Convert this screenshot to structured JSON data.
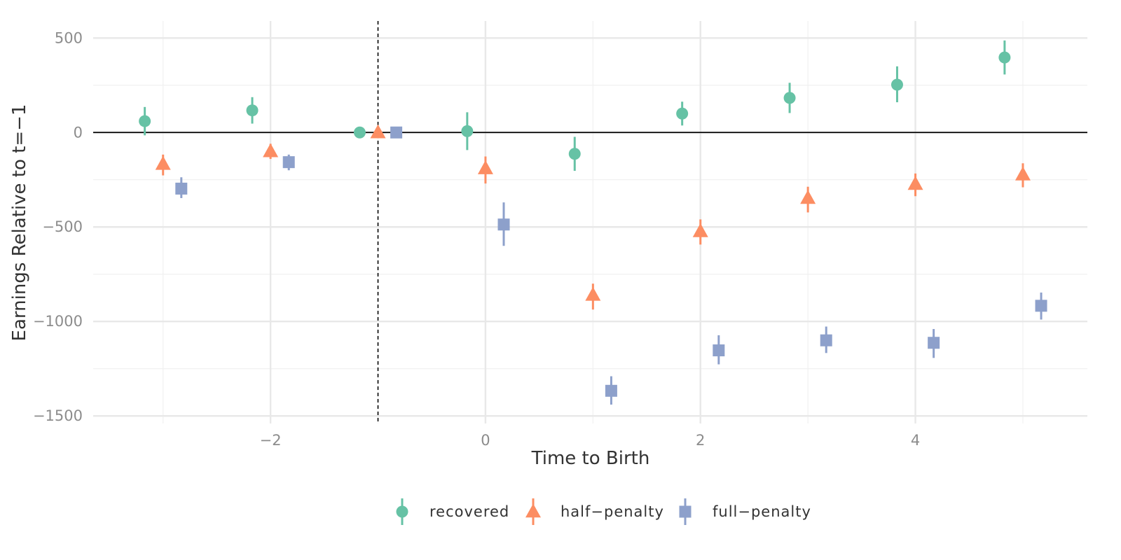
{
  "chart_data": {
    "type": "scatter",
    "xlabel": "Time to Birth",
    "ylabel": "Earnings Relative to t=−1",
    "x_ticks": [
      -2,
      0,
      2,
      4
    ],
    "x_tick_labels": [
      "−2",
      "0",
      "2",
      "4"
    ],
    "y_ticks": [
      500,
      0,
      -500,
      -1000,
      -1500
    ],
    "y_tick_labels": [
      "500",
      "0",
      "−500",
      "−1000",
      "−1500"
    ],
    "xlim": [
      -3.65,
      5.6
    ],
    "ylim": [
      -1540,
      590
    ],
    "grid": true,
    "reference_hline_y": 0,
    "reference_vline_x": -1,
    "dodge": 0.17,
    "legend_position": "bottom",
    "series": [
      {
        "name": "recovered",
        "color": "#66c2a5",
        "shape": "circle",
        "points": [
          {
            "x": -3,
            "y": 60,
            "lo": -15,
            "hi": 135
          },
          {
            "x": -2,
            "y": 117,
            "lo": 47,
            "hi": 187
          },
          {
            "x": -1,
            "y": 0,
            "lo": 0,
            "hi": 0
          },
          {
            "x": 0,
            "y": 7,
            "lo": -93,
            "hi": 107
          },
          {
            "x": 1,
            "y": -113,
            "lo": -203,
            "hi": -23
          },
          {
            "x": 2,
            "y": 100,
            "lo": 37,
            "hi": 163
          },
          {
            "x": 3,
            "y": 183,
            "lo": 103,
            "hi": 263
          },
          {
            "x": 4,
            "y": 253,
            "lo": 160,
            "hi": 350
          },
          {
            "x": 5,
            "y": 397,
            "lo": 307,
            "hi": 487
          }
        ]
      },
      {
        "name": "half−penalty",
        "color": "#fc8d62",
        "shape": "triangle",
        "points": [
          {
            "x": -3,
            "y": -167,
            "lo": -227,
            "hi": -117
          },
          {
            "x": -2,
            "y": -100,
            "lo": -140,
            "hi": -60
          },
          {
            "x": -1,
            "y": 0,
            "lo": 0,
            "hi": 0
          },
          {
            "x": 0,
            "y": -190,
            "lo": -270,
            "hi": -127
          },
          {
            "x": 1,
            "y": -860,
            "lo": -937,
            "hi": -800
          },
          {
            "x": 2,
            "y": -523,
            "lo": -593,
            "hi": -460
          },
          {
            "x": 3,
            "y": -347,
            "lo": -423,
            "hi": -287
          },
          {
            "x": 4,
            "y": -273,
            "lo": -337,
            "hi": -217
          },
          {
            "x": 5,
            "y": -223,
            "lo": -290,
            "hi": -163
          }
        ]
      },
      {
        "name": "full−penalty",
        "color": "#8da0cb",
        "shape": "square",
        "points": [
          {
            "x": -3,
            "y": -297,
            "lo": -347,
            "hi": -237
          },
          {
            "x": -2,
            "y": -157,
            "lo": -200,
            "hi": -117
          },
          {
            "x": -1,
            "y": 0,
            "lo": 0,
            "hi": 0
          },
          {
            "x": 0,
            "y": -487,
            "lo": -600,
            "hi": -370
          },
          {
            "x": 1,
            "y": -1367,
            "lo": -1440,
            "hi": -1290
          },
          {
            "x": 2,
            "y": -1153,
            "lo": -1227,
            "hi": -1073
          },
          {
            "x": 3,
            "y": -1100,
            "lo": -1167,
            "hi": -1027
          },
          {
            "x": 4,
            "y": -1113,
            "lo": -1193,
            "hi": -1040
          },
          {
            "x": 5,
            "y": -917,
            "lo": -990,
            "hi": -847
          }
        ]
      }
    ]
  }
}
